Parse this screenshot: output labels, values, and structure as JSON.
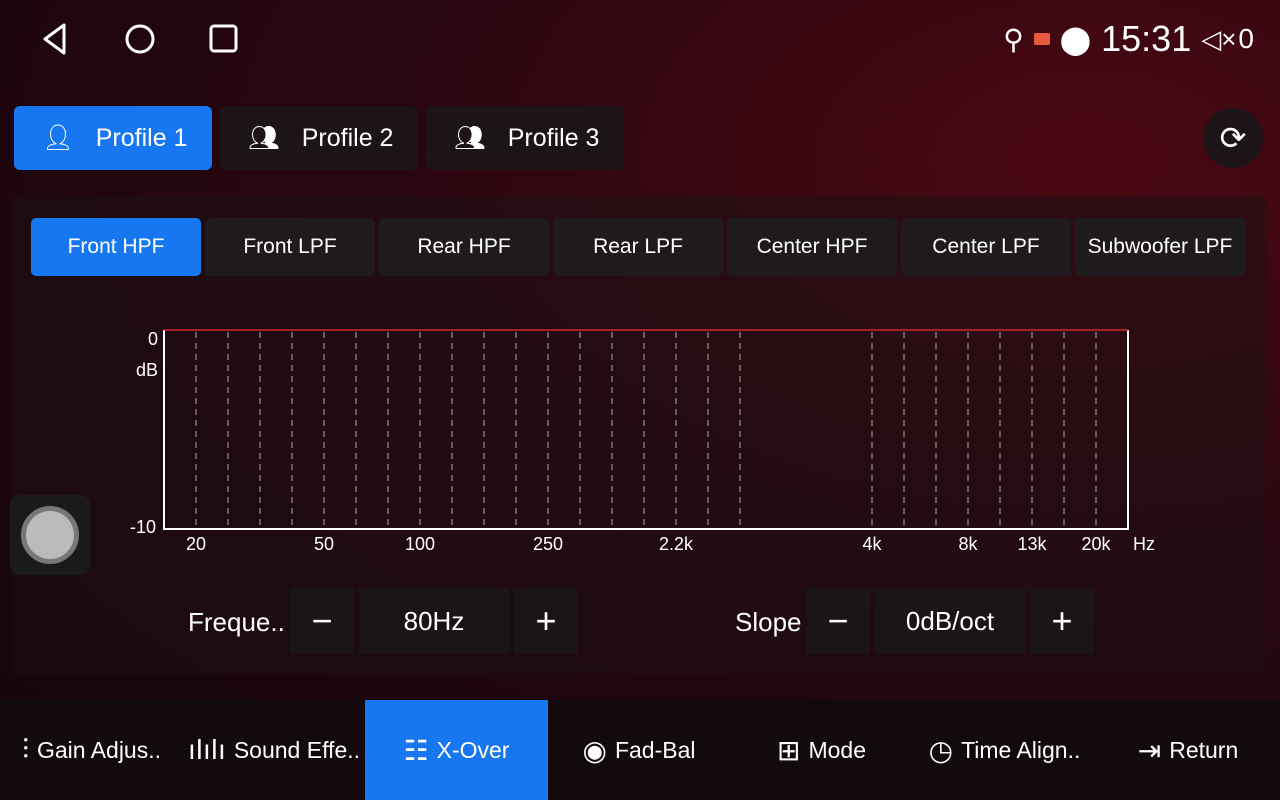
{
  "status": {
    "time": "15:31",
    "volume": "0",
    "icons": [
      "usb-icon",
      "cast-icon",
      "location-icon",
      "mute-icon"
    ]
  },
  "profiles": [
    {
      "label": "Profile 1",
      "active": true
    },
    {
      "label": "Profile 2"
    },
    {
      "label": "Profile 3"
    }
  ],
  "filter_tabs": [
    {
      "label": "Front HPF",
      "active": true
    },
    {
      "label": "Front LPF"
    },
    {
      "label": "Rear HPF"
    },
    {
      "label": "Rear LPF"
    },
    {
      "label": "Center HPF"
    },
    {
      "label": "Center LPF"
    },
    {
      "label": "Subwoofer LPF"
    }
  ],
  "chart": {
    "y_top": "0",
    "y_unit": "dB",
    "y_bottom": "-10",
    "x_unit": "Hz",
    "x_labels": [
      "20",
      "50",
      "100",
      "250",
      "2.2k",
      "4k",
      "8k",
      "13k",
      "20k"
    ],
    "curve_color": "#d0282c",
    "curve_value_db": 0
  },
  "controls": {
    "frequency_label": "Freque..",
    "frequency_value": "80Hz",
    "slope_label": "Slope",
    "slope_value": "0dB/oct",
    "minus": "−",
    "plus": "+"
  },
  "bottom_nav": [
    {
      "label": "Gain Adjus.."
    },
    {
      "label": "Sound Effe.."
    },
    {
      "label": "X-Over",
      "active": true
    },
    {
      "label": "Fad-Bal"
    },
    {
      "label": "Mode"
    },
    {
      "label": "Time Align.."
    },
    {
      "label": "Return"
    }
  ],
  "accent": "#1677f0"
}
